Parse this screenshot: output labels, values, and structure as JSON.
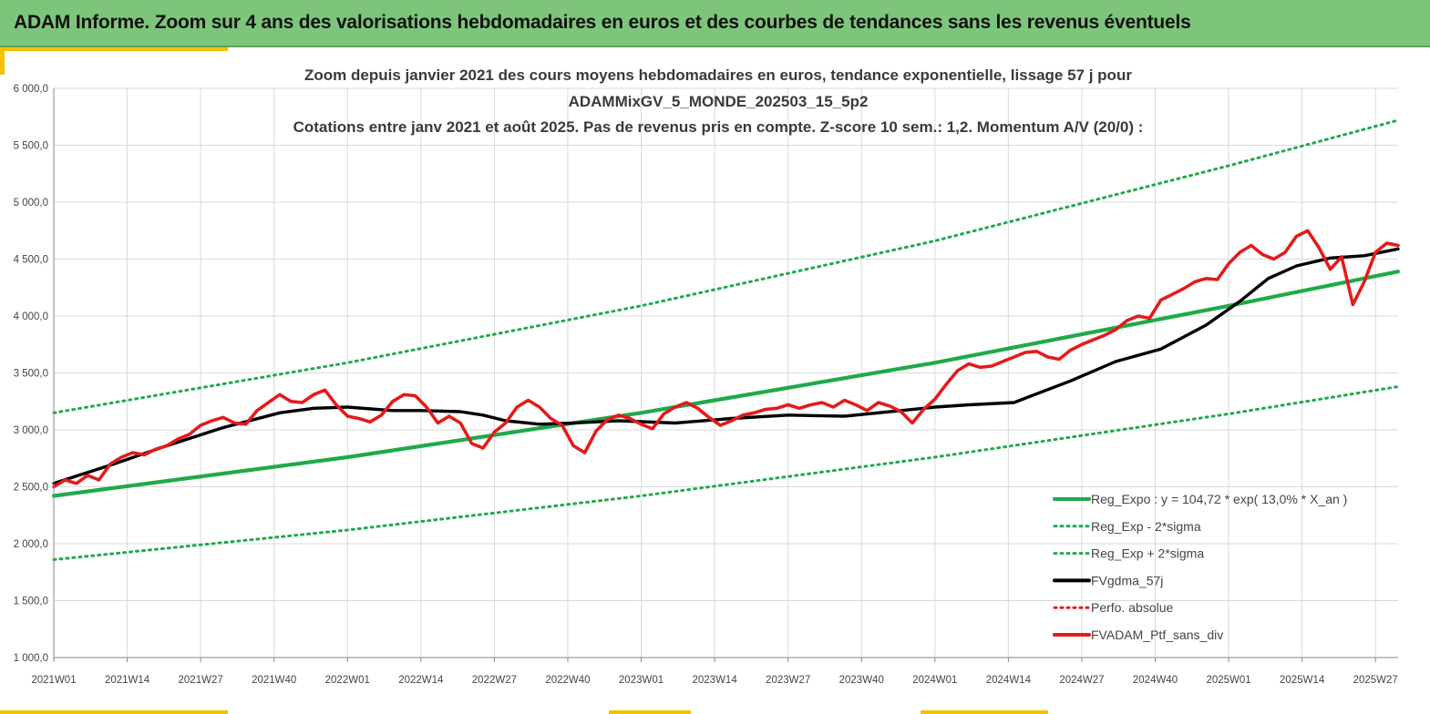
{
  "banner": {
    "title": "ADAM Informe. Zoom sur 4 ans des valorisations hebdomadaires en euros et des courbes de tendances sans les revenus éventuels"
  },
  "colors": {
    "banner_bg": "#7dc57a",
    "accent": "#f2c200",
    "reg_expo": "#1faa4a",
    "fvgdma": "#000000",
    "fvadam": "#e31b1b"
  },
  "chart_data": {
    "type": "line",
    "title_lines": [
      "Zoom depuis janvier 2021 des cours moyens hebdomadaires  en euros, tendance exponentielle, lissage 57 j pour",
      "ADAMMixGV_5_MONDE_202503_15_5p2",
      "Cotations entre janv 2021 et août 2025. Pas de revenus pris en compte. Z-score 10 sem.: 1,2. Momentum A/V (20/0) :"
    ],
    "ylim": [
      1000,
      6000
    ],
    "yticks": [
      "1 000,0",
      "1 500,0",
      "2 000,0",
      "2 500,0",
      "3 000,0",
      "3 500,0",
      "4 000,0",
      "4 500,0",
      "5 000,0",
      "5 500,0",
      "6 000,0"
    ],
    "x_labels": [
      "2021W01",
      "2021W14",
      "2021W27",
      "2021W40",
      "2022W01",
      "2022W14",
      "2022W27",
      "2022W40",
      "2023W01",
      "2023W14",
      "2023W27",
      "2023W40",
      "2024W01",
      "2024W14",
      "2024W27",
      "2024W40",
      "2025W01",
      "2025W14",
      "2025W27"
    ],
    "x_range_weeks": [
      0,
      238
    ],
    "grid": "vertical and horizontal",
    "legend_position": "bottom-right",
    "legend": [
      {
        "label": "Reg_Expo : y = 104,72 * exp( 13,0% *  X_an )",
        "style": "solid",
        "color": "#1faa4a"
      },
      {
        "label": "Reg_Exp - 2*sigma",
        "style": "dotted",
        "color": "#1faa4a"
      },
      {
        "label": "Reg_Exp + 2*sigma",
        "style": "dotted",
        "color": "#1faa4a"
      },
      {
        "label": "FVgdma_57j",
        "style": "solid",
        "color": "#000000"
      },
      {
        "label": "Perfo. absolue",
        "style": "dotted",
        "color": "#e31b1b"
      },
      {
        "label": "FVADAM_Ptf_sans_div",
        "style": "solid",
        "color": "#e31b1b"
      }
    ],
    "series": [
      {
        "name": "Reg_Expo : y = 104,72 * exp( 13,0% *  X_an )",
        "style": "solid",
        "color": "#1faa4a",
        "x": [
          0,
          52,
          104,
          156,
          208,
          238
        ],
        "y": [
          2420,
          2760,
          3150,
          3590,
          4090,
          4390
        ]
      },
      {
        "name": "Reg_Exp - 2*sigma",
        "style": "dotted",
        "color": "#1faa4a",
        "x": [
          0,
          52,
          104,
          156,
          208,
          238
        ],
        "y": [
          1860,
          2120,
          2420,
          2760,
          3140,
          3380
        ]
      },
      {
        "name": "Reg_Exp + 2*sigma",
        "style": "dotted",
        "color": "#1faa4a",
        "x": [
          0,
          52,
          104,
          156,
          208,
          238
        ],
        "y": [
          3150,
          3590,
          4090,
          4660,
          5320,
          5720
        ]
      },
      {
        "name": "FVgdma_57j",
        "style": "solid",
        "color": "#000000",
        "x": [
          0,
          10,
          20,
          30,
          40,
          46,
          52,
          60,
          65,
          72,
          76,
          80,
          86,
          92,
          100,
          110,
          120,
          130,
          140,
          150,
          156,
          162,
          170,
          180,
          188,
          196,
          204,
          210,
          215,
          220,
          226,
          232,
          238
        ],
        "y": [
          2530,
          2690,
          2860,
          3020,
          3150,
          3190,
          3200,
          3170,
          3170,
          3160,
          3130,
          3080,
          3050,
          3060,
          3080,
          3060,
          3100,
          3130,
          3120,
          3170,
          3200,
          3220,
          3240,
          3430,
          3600,
          3710,
          3920,
          4130,
          4330,
          4440,
          4510,
          4530,
          4590
        ]
      },
      {
        "name": "FVADAM_Ptf_sans_div",
        "style": "solid",
        "color": "#e31b1b",
        "x": [
          0,
          2,
          4,
          6,
          8,
          10,
          12,
          14,
          16,
          18,
          20,
          22,
          24,
          26,
          28,
          30,
          32,
          34,
          36,
          38,
          40,
          42,
          44,
          46,
          48,
          50,
          52,
          54,
          56,
          58,
          60,
          62,
          64,
          66,
          68,
          70,
          72,
          74,
          76,
          78,
          80,
          82,
          84,
          86,
          88,
          90,
          92,
          94,
          96,
          98,
          100,
          102,
          104,
          106,
          108,
          110,
          112,
          114,
          116,
          118,
          120,
          122,
          124,
          126,
          128,
          130,
          132,
          134,
          136,
          138,
          140,
          142,
          144,
          146,
          148,
          150,
          152,
          154,
          156,
          158,
          160,
          162,
          164,
          166,
          168,
          170,
          172,
          174,
          176,
          178,
          180,
          182,
          184,
          186,
          188,
          190,
          192,
          194,
          196,
          198,
          200,
          202,
          204,
          206,
          208,
          210,
          212,
          214,
          216,
          218,
          220,
          222,
          224,
          226,
          228,
          230,
          232,
          234,
          236,
          238
        ],
        "y": [
          2500,
          2560,
          2530,
          2600,
          2560,
          2700,
          2760,
          2800,
          2780,
          2830,
          2860,
          2920,
          2960,
          3040,
          3080,
          3110,
          3060,
          3050,
          3170,
          3240,
          3310,
          3250,
          3240,
          3310,
          3350,
          3220,
          3120,
          3100,
          3070,
          3130,
          3250,
          3310,
          3300,
          3200,
          3060,
          3120,
          3060,
          2880,
          2840,
          2980,
          3060,
          3200,
          3260,
          3200,
          3100,
          3040,
          2860,
          2800,
          2990,
          3090,
          3130,
          3100,
          3050,
          3010,
          3140,
          3200,
          3240,
          3190,
          3110,
          3040,
          3080,
          3130,
          3150,
          3180,
          3190,
          3220,
          3190,
          3220,
          3240,
          3200,
          3260,
          3220,
          3170,
          3240,
          3210,
          3160,
          3060,
          3180,
          3270,
          3400,
          3520,
          3580,
          3550,
          3560,
          3600,
          3640,
          3680,
          3690,
          3640,
          3620,
          3700,
          3750,
          3790,
          3830,
          3880,
          3960,
          4000,
          3980,
          4140,
          4190,
          4240,
          4300,
          4330,
          4320,
          4460,
          4560,
          4620,
          4540,
          4500,
          4560,
          4700,
          4750,
          4600,
          4410,
          4520,
          4100,
          4300,
          4560,
          4640,
          4620
        ]
      },
      {
        "name": "Perfo. absolue",
        "style": "dotted",
        "color": "#e31b1b",
        "x": [],
        "y": []
      }
    ]
  }
}
